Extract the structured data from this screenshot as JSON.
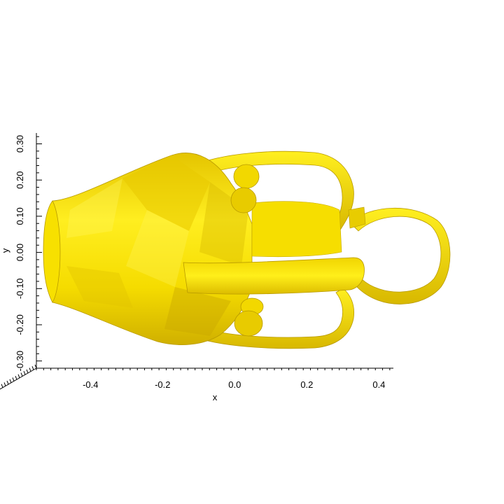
{
  "axes": {
    "x": {
      "label": "x",
      "ticks": [
        {
          "value": -0.4,
          "label": "-0.4"
        },
        {
          "value": -0.2,
          "label": "-0.2"
        },
        {
          "value": 0.0,
          "label": "0.0"
        },
        {
          "value": 0.2,
          "label": "0.2"
        },
        {
          "value": 0.4,
          "label": "0.4"
        }
      ],
      "range": [
        -0.55,
        0.44
      ]
    },
    "y": {
      "label": "y",
      "ticks": [
        {
          "value": -0.3,
          "label": "-0.30"
        },
        {
          "value": -0.2,
          "label": "-0.20"
        },
        {
          "value": -0.1,
          "label": "-0.10"
        },
        {
          "value": 0.0,
          "label": "0.00"
        },
        {
          "value": 0.1,
          "label": "0.10"
        },
        {
          "value": 0.2,
          "label": "0.20"
        },
        {
          "value": 0.3,
          "label": "0.30"
        }
      ],
      "range": [
        -0.32,
        0.33
      ]
    }
  },
  "colors": {
    "surface": "#f2e010",
    "surface_light": "#fff23a",
    "surface_dark": "#c7a900",
    "surface_shadow": "#a88a00",
    "axis": "#000000"
  },
  "object": "amphora-mesh"
}
